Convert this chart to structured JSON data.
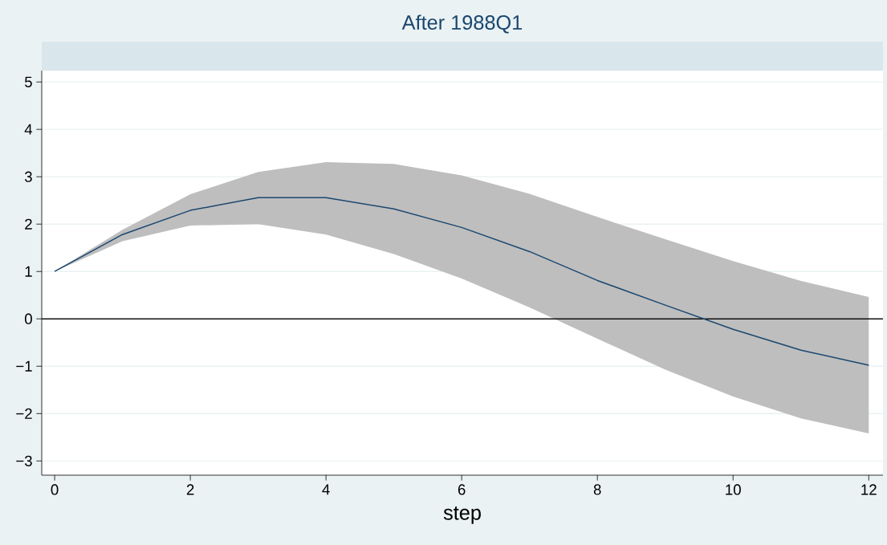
{
  "chart_data": {
    "type": "line",
    "title": "After 1988Q1",
    "xlabel": "step",
    "x": [
      0,
      1,
      2,
      3,
      4,
      5,
      6,
      7,
      8,
      9,
      10,
      11,
      12
    ],
    "series": [
      {
        "color": "#1a476f",
        "values": [
          1.0,
          1.78,
          2.29,
          2.56,
          2.56,
          2.32,
          1.93,
          1.42,
          0.81,
          0.29,
          -0.22,
          -0.66,
          -0.98
        ],
        "lower": [
          1.0,
          1.64,
          1.97,
          2.0,
          1.78,
          1.37,
          0.85,
          0.24,
          -0.42,
          -1.07,
          -1.64,
          -2.1,
          -2.42
        ],
        "upper": [
          1.0,
          1.88,
          2.63,
          3.1,
          3.31,
          3.27,
          3.03,
          2.64,
          2.15,
          1.68,
          1.22,
          0.8,
          0.46
        ]
      }
    ],
    "ref_lines": [
      {
        "axis": "y",
        "value": 0,
        "color": "#000000"
      }
    ],
    "xlim": [
      -0.19,
      12.21
    ],
    "ylim": [
      -3.3,
      5.24
    ],
    "xticks": [
      0,
      2,
      4,
      6,
      8,
      10,
      12
    ],
    "yticks": [
      {
        "value": -3,
        "label": "−3"
      },
      {
        "value": -2,
        "label": "−2"
      },
      {
        "value": -1,
        "label": "−1"
      },
      0,
      1,
      2,
      3,
      4,
      5
    ],
    "grid": "y",
    "marker": "none",
    "line_style": "solid"
  }
}
